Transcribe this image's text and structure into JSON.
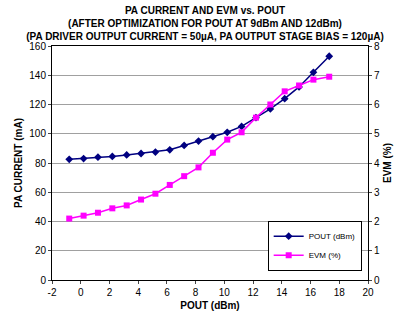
{
  "chart_data": {
    "type": "line",
    "title": [
      "PA CURRENT AND EVM vs. POUT",
      "(AFTER OPTIMIZATION FOR POUT AT 9dBm AND 12dBm)",
      "(PA DRIVER OUTPUT CURRENT = 50µA, PA OUTPUT STAGE BIAS = 120µA)"
    ],
    "x_label": "POUT (dBm)",
    "y_label": "PA CURRENT (mA)",
    "y2_label": "EVM (%)",
    "x": [
      -0.8,
      0.2,
      1.2,
      2.2,
      3.2,
      4.2,
      5.2,
      6.2,
      7.2,
      8.2,
      9.2,
      10.2,
      11.2,
      12.2,
      13.2,
      14.2,
      15.2,
      16.2,
      17.3
    ],
    "series": [
      {
        "name": "POUT (dBm)",
        "color": "#000080",
        "marker": "diamond",
        "line_style": "solid",
        "values": [
          82.5,
          83,
          84,
          84.5,
          85.5,
          86.5,
          87.5,
          89,
          92,
          95,
          98,
          101,
          105,
          111,
          117,
          124,
          132,
          142,
          153
        ]
      },
      {
        "name": "EVM (%)",
        "color": "#ff00ff",
        "marker": "square",
        "line_style": "solid",
        "axis": "y2",
        "values": [
          2.1,
          2.2,
          2.3,
          2.45,
          2.55,
          2.75,
          2.95,
          3.25,
          3.55,
          3.85,
          4.35,
          4.8,
          5.05,
          5.55,
          6.0,
          6.45,
          6.65,
          6.85,
          6.95
        ]
      }
    ],
    "xlim": [
      -2,
      20
    ],
    "xticks": [
      -2,
      0,
      2,
      4,
      6,
      8,
      10,
      12,
      14,
      16,
      18,
      20
    ],
    "ylim": [
      0,
      160
    ],
    "yticks": [
      0,
      20,
      40,
      60,
      80,
      100,
      120,
      140,
      160
    ],
    "y2lim": [
      0,
      8
    ],
    "y2ticks": [
      0,
      1,
      2,
      3,
      4,
      5,
      6,
      7,
      8
    ],
    "grid": true,
    "legend": "lower right"
  }
}
